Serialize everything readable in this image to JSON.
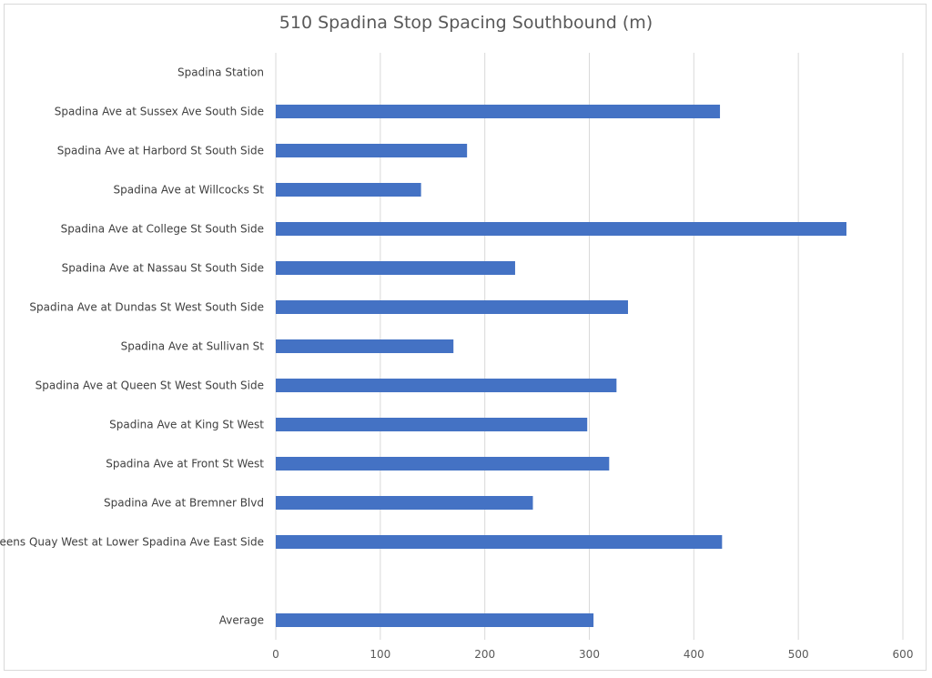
{
  "chart_data": {
    "type": "bar",
    "orientation": "horizontal",
    "title": "510 Spadina Stop Spacing Southbound (m)",
    "xlabel": "",
    "ylabel": "",
    "xlim": [
      0,
      600
    ],
    "x_ticks": [
      "0",
      "100",
      "200",
      "300",
      "400",
      "500",
      "600"
    ],
    "grid": "vertical",
    "legend": "none",
    "bar_color": "#4472c4",
    "categories": [
      "Spadina Station",
      "Spadina Ave at Sussex Ave South Side",
      "Spadina Ave at Harbord St South Side",
      "Spadina Ave at Willcocks St",
      "Spadina Ave at College St South Side",
      "Spadina Ave at Nassau St South Side",
      "Spadina Ave at Dundas St West South Side",
      "Spadina Ave at Sullivan St",
      "Spadina Ave at Queen St West South Side",
      "Spadina Ave at King St West",
      "Spadina Ave at Front St West",
      "Spadina Ave at Bremner Blvd",
      "Queens Quay West at Lower Spadina Ave East Side",
      "",
      "Average"
    ],
    "values": [
      0,
      425,
      183,
      139,
      546,
      229,
      337,
      170,
      326,
      298,
      319,
      246,
      427,
      null,
      304
    ]
  }
}
